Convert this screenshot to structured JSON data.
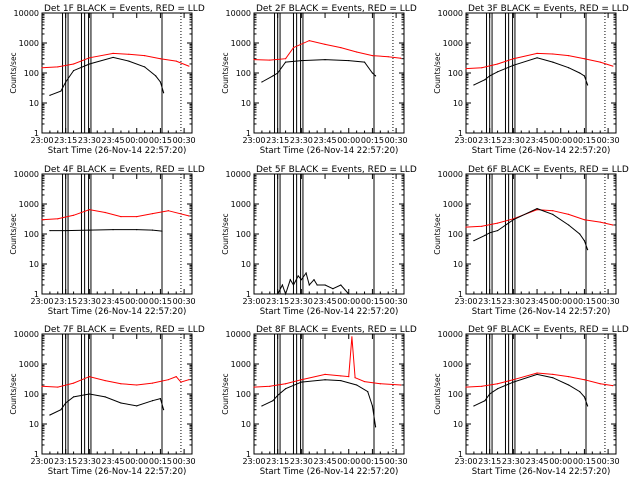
{
  "figure": {
    "xlabel": "Start Time (26-Nov-14 22:57:20)",
    "ylabel": "Counts/sec"
  },
  "chart_data": [
    {
      "type": "line",
      "title": "Det 1F BLACK = Events, RED = LLD",
      "xlabel": "Start Time (26-Nov-14 22:57:20)",
      "ylabel": "Counts/sec",
      "ylog": true,
      "ylim": [
        1,
        10000
      ],
      "xlim": [
        "23:00",
        "00:35"
      ],
      "x_ticks": [
        "23:00",
        "23:15",
        "23:30",
        "23:45",
        "00:00",
        "00:15",
        "00:30"
      ],
      "y_ticks": [
        "1",
        "10",
        "100",
        "1000",
        "10000"
      ],
      "series": [
        {
          "color": "#ff0000",
          "x": [
            "23:00",
            "23:10",
            "23:20",
            "23:30",
            "23:45",
            "23:55",
            "00:05",
            "00:15",
            "00:25",
            "00:33"
          ],
          "values": [
            150,
            160,
            200,
            320,
            450,
            420,
            380,
            300,
            250,
            170
          ]
        },
        {
          "color": "#000000",
          "x": [
            "23:05",
            "23:12",
            "23:15",
            "23:20",
            "23:30",
            "23:45",
            "23:55",
            "00:05",
            "00:12",
            "00:15",
            "00:17"
          ],
          "values": [
            18,
            25,
            50,
            120,
            200,
            330,
            250,
            160,
            80,
            50,
            22
          ]
        }
      ]
    },
    {
      "type": "line",
      "title": "Det 2F BLACK = Events, RED = LLD",
      "xlabel": "Start Time (26-Nov-14 22:57:20)",
      "ylabel": "Counts/sec",
      "ylog": true,
      "ylim": [
        1,
        10000
      ],
      "xlim": [
        "23:00",
        "00:35"
      ],
      "x_ticks": [
        "23:00",
        "23:15",
        "23:30",
        "23:45",
        "00:00",
        "00:15",
        "00:30"
      ],
      "y_ticks": [
        "1",
        "10",
        "100",
        "1000",
        "10000"
      ],
      "series": [
        {
          "color": "#ff0000",
          "x": [
            "23:00",
            "23:10",
            "23:20",
            "23:25",
            "23:35",
            "23:45",
            "23:55",
            "00:05",
            "00:15",
            "00:25",
            "00:33"
          ],
          "values": [
            280,
            270,
            300,
            700,
            1200,
            900,
            700,
            500,
            380,
            350,
            310
          ]
        },
        {
          "color": "#000000",
          "x": [
            "23:05",
            "23:12",
            "23:15",
            "23:20",
            "23:30",
            "23:45",
            "00:00",
            "00:10",
            "00:15",
            "00:17"
          ],
          "values": [
            50,
            80,
            100,
            230,
            260,
            280,
            260,
            230,
            100,
            80
          ]
        }
      ]
    },
    {
      "type": "line",
      "title": "Det 3F BLACK = Events, RED = LLD",
      "xlabel": "Start Time (26-Nov-14 22:57:20)",
      "ylabel": "Counts/sec",
      "ylog": true,
      "ylim": [
        1,
        10000
      ],
      "xlim": [
        "23:00",
        "00:35"
      ],
      "x_ticks": [
        "23:00",
        "23:15",
        "23:30",
        "23:45",
        "00:00",
        "00:15",
        "00:30"
      ],
      "y_ticks": [
        "1",
        "10",
        "100",
        "1000",
        "10000"
      ],
      "series": [
        {
          "color": "#ff0000",
          "x": [
            "23:00",
            "23:10",
            "23:20",
            "23:30",
            "23:45",
            "23:55",
            "00:05",
            "00:15",
            "00:25",
            "00:33"
          ],
          "values": [
            140,
            150,
            200,
            300,
            450,
            430,
            380,
            300,
            230,
            170
          ]
        },
        {
          "color": "#000000",
          "x": [
            "23:05",
            "23:12",
            "23:15",
            "23:20",
            "23:30",
            "23:45",
            "23:55",
            "00:05",
            "00:12",
            "00:15",
            "00:17"
          ],
          "values": [
            40,
            60,
            80,
            110,
            180,
            320,
            230,
            150,
            100,
            80,
            40
          ]
        }
      ]
    },
    {
      "type": "line",
      "title": "Det 4F BLACK = Events, RED = LLD",
      "xlabel": "Start Time (26-Nov-14 22:57:20)",
      "ylabel": "Counts/sec",
      "ylog": true,
      "ylim": [
        1,
        10000
      ],
      "xlim": [
        "23:00",
        "00:35"
      ],
      "x_ticks": [
        "23:00",
        "23:15",
        "23:30",
        "23:45",
        "00:00",
        "00:15",
        "00:30"
      ],
      "y_ticks": [
        "1",
        "10",
        "100",
        "1000",
        "10000"
      ],
      "series": [
        {
          "color": "#ff0000",
          "x": [
            "23:00",
            "23:10",
            "23:20",
            "23:30",
            "23:40",
            "23:50",
            "00:00",
            "00:10",
            "00:20",
            "00:33"
          ],
          "values": [
            300,
            320,
            420,
            650,
            520,
            380,
            380,
            480,
            600,
            400
          ]
        },
        {
          "color": "#000000",
          "x": [
            "23:05",
            "23:15",
            "23:30",
            "23:45",
            "00:00",
            "00:10",
            "00:16"
          ],
          "values": [
            130,
            130,
            135,
            140,
            140,
            135,
            125
          ]
        }
      ]
    },
    {
      "type": "line",
      "title": "Det 5F BLACK = Events, RED = LLD",
      "xlabel": "Start Time (26-Nov-14 22:57:20)",
      "ylabel": "Counts/sec",
      "ylog": true,
      "ylim": [
        1,
        10000
      ],
      "xlim": [
        "23:00",
        "00:35"
      ],
      "x_ticks": [
        "23:00",
        "23:15",
        "23:30",
        "23:45",
        "00:00",
        "00:15",
        "00:30"
      ],
      "y_ticks": [
        "1",
        "10",
        "100",
        "1000",
        "10000"
      ],
      "series": [
        {
          "color": "#000000",
          "x": [
            "23:15",
            "23:18",
            "23:20",
            "23:23",
            "23:25",
            "23:28",
            "23:30",
            "23:33",
            "23:35",
            "23:38",
            "23:40",
            "23:45",
            "23:50",
            "23:55",
            "00:00"
          ],
          "values": [
            1,
            2,
            1,
            3,
            2,
            4,
            3,
            5,
            2,
            3,
            2,
            2,
            1.5,
            2,
            1
          ]
        }
      ]
    },
    {
      "type": "line",
      "title": "Det 6F BLACK = Events, RED = LLD",
      "xlabel": "Start Time (26-Nov-14 22:57:20)",
      "ylabel": "Counts/sec",
      "ylog": true,
      "ylim": [
        1,
        10000
      ],
      "xlim": [
        "23:00",
        "00:35"
      ],
      "x_ticks": [
        "23:00",
        "23:15",
        "23:30",
        "23:45",
        "00:00",
        "00:15",
        "00:30"
      ],
      "y_ticks": [
        "1",
        "10",
        "100",
        "1000",
        "10000"
      ],
      "series": [
        {
          "color": "#ff0000",
          "x": [
            "23:00",
            "23:10",
            "23:20",
            "23:30",
            "23:45",
            "23:55",
            "00:05",
            "00:15",
            "00:25",
            "00:33"
          ],
          "values": [
            170,
            180,
            230,
            320,
            650,
            600,
            450,
            300,
            250,
            200
          ]
        },
        {
          "color": "#000000",
          "x": [
            "23:05",
            "23:12",
            "23:15",
            "23:20",
            "23:30",
            "23:45",
            "23:55",
            "00:05",
            "00:12",
            "00:15",
            "00:17"
          ],
          "values": [
            60,
            90,
            110,
            130,
            300,
            700,
            450,
            200,
            100,
            60,
            30
          ]
        }
      ]
    },
    {
      "type": "line",
      "title": "Det 7F BLACK = Events, RED = LLD",
      "xlabel": "Start Time (26-Nov-14 22:57:20)",
      "ylabel": "Counts/sec",
      "ylog": true,
      "ylim": [
        1,
        10000
      ],
      "xlim": [
        "23:00",
        "00:35"
      ],
      "x_ticks": [
        "23:00",
        "23:15",
        "23:30",
        "23:45",
        "00:00",
        "00:15",
        "00:30"
      ],
      "y_ticks": [
        "1",
        "10",
        "100",
        "1000",
        "10000"
      ],
      "series": [
        {
          "color": "#ff0000",
          "x": [
            "23:00",
            "23:10",
            "23:20",
            "23:30",
            "23:40",
            "23:50",
            "00:00",
            "00:10",
            "00:20",
            "00:25",
            "00:28",
            "00:33"
          ],
          "values": [
            180,
            170,
            230,
            380,
            280,
            220,
            200,
            230,
            300,
            380,
            250,
            300
          ]
        },
        {
          "color": "#000000",
          "x": [
            "23:05",
            "23:12",
            "23:15",
            "23:20",
            "23:30",
            "23:40",
            "23:50",
            "00:00",
            "00:10",
            "00:15",
            "00:17"
          ],
          "values": [
            20,
            30,
            50,
            80,
            100,
            80,
            50,
            40,
            60,
            70,
            30
          ]
        }
      ]
    },
    {
      "type": "line",
      "title": "Det 8F BLACK = Events, RED = LLD",
      "xlabel": "Start Time (26-Nov-14 22:57:20)",
      "ylabel": "Counts/sec",
      "ylog": true,
      "ylim": [
        1,
        10000
      ],
      "xlim": [
        "23:00",
        "00:35"
      ],
      "x_ticks": [
        "23:00",
        "23:15",
        "23:30",
        "23:45",
        "00:00",
        "00:15",
        "00:30"
      ],
      "y_ticks": [
        "1",
        "10",
        "100",
        "1000",
        "10000"
      ],
      "series": [
        {
          "color": "#ff0000",
          "x": [
            "23:00",
            "23:10",
            "23:20",
            "23:30",
            "23:45",
            "23:55",
            "00:00",
            "00:02",
            "00:04",
            "00:10",
            "00:20",
            "00:33"
          ],
          "values": [
            170,
            180,
            220,
            300,
            450,
            400,
            380,
            8000,
            350,
            260,
            220,
            200
          ]
        },
        {
          "color": "#000000",
          "x": [
            "23:05",
            "23:12",
            "23:15",
            "23:20",
            "23:30",
            "23:45",
            "23:55",
            "00:05",
            "00:12",
            "00:15",
            "00:17"
          ],
          "values": [
            40,
            60,
            90,
            150,
            250,
            300,
            280,
            200,
            120,
            40,
            8
          ]
        }
      ]
    },
    {
      "type": "line",
      "title": "Det 9F BLACK = Events, RED = LLD",
      "xlabel": "Start Time (26-Nov-14 22:57:20)",
      "ylabel": "Counts/sec",
      "ylog": true,
      "ylim": [
        1,
        10000
      ],
      "xlim": [
        "23:00",
        "00:35"
      ],
      "x_ticks": [
        "23:00",
        "23:15",
        "23:30",
        "23:45",
        "00:00",
        "00:15",
        "00:30"
      ],
      "y_ticks": [
        "1",
        "10",
        "100",
        "1000",
        "10000"
      ],
      "series": [
        {
          "color": "#ff0000",
          "x": [
            "23:00",
            "23:10",
            "23:20",
            "23:30",
            "23:45",
            "23:55",
            "00:05",
            "00:15",
            "00:25",
            "00:33"
          ],
          "values": [
            170,
            180,
            220,
            300,
            500,
            450,
            380,
            300,
            220,
            190
          ]
        },
        {
          "color": "#000000",
          "x": [
            "23:05",
            "23:12",
            "23:15",
            "23:20",
            "23:30",
            "23:45",
            "23:55",
            "00:05",
            "00:12",
            "00:15",
            "00:17"
          ],
          "values": [
            40,
            60,
            100,
            150,
            250,
            450,
            350,
            200,
            120,
            80,
            40
          ]
        }
      ]
    }
  ]
}
